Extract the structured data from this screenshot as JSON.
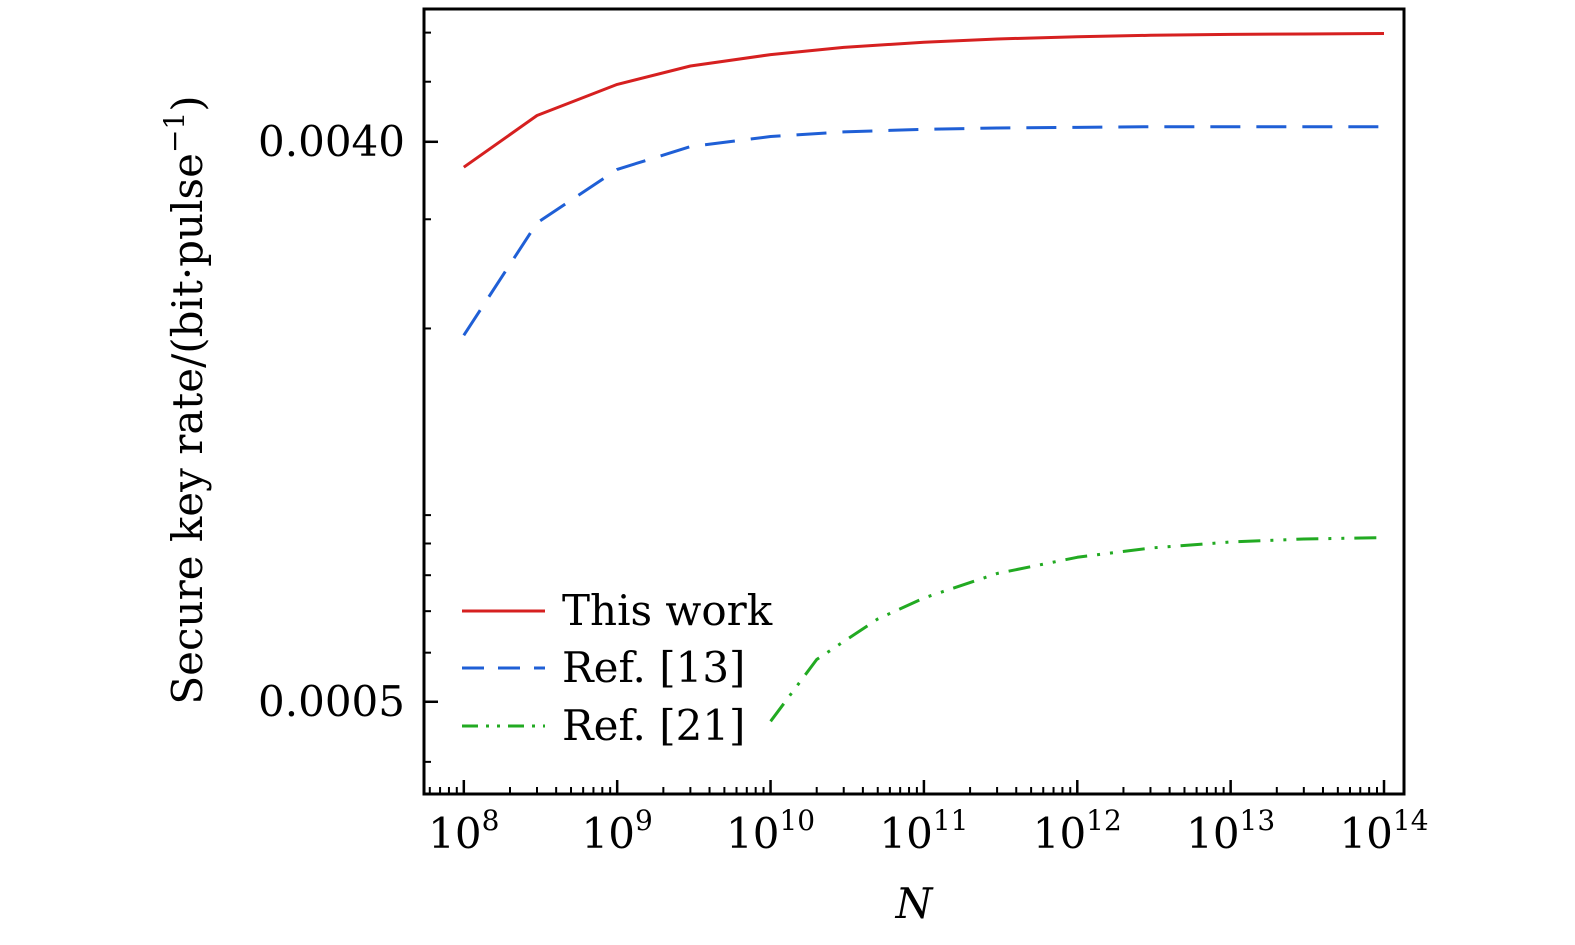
{
  "chart_data": {
    "type": "line",
    "xlabel": "N",
    "ylabel": "Secure key rate/(bit·pulse",
    "ylabel_sup": "−1",
    "ylabel_close": ")",
    "xscale": "log",
    "yscale": "log",
    "xlim": [
      55000000.0,
      135000000000000.0
    ],
    "ylim": [
      0.000355,
      0.00655
    ],
    "x_ticks": [
      {
        "base": "10",
        "exp": "8"
      },
      {
        "base": "10",
        "exp": "9"
      },
      {
        "base": "10",
        "exp": "10"
      },
      {
        "base": "10",
        "exp": "11"
      },
      {
        "base": "10",
        "exp": "12"
      },
      {
        "base": "10",
        "exp": "13"
      },
      {
        "base": "10",
        "exp": "14"
      }
    ],
    "y_ticks": [
      "0.0005",
      "0.0040"
    ],
    "grid": false,
    "legend_position": "bottom-left",
    "series": [
      {
        "name": "This work",
        "color": "#d62020",
        "dash": "solid",
        "x": [
          100000000.0,
          300000000.0,
          1000000000.0,
          3000000000.0,
          10000000000.0,
          30000000000.0,
          100000000000.0,
          300000000000.0,
          1000000000000.0,
          3000000000000.0,
          10000000000000.0,
          30000000000000.0,
          100000000000000.0
        ],
        "y": [
          0.00364,
          0.00441,
          0.00495,
          0.0053,
          0.00553,
          0.00568,
          0.00579,
          0.00586,
          0.00591,
          0.00594,
          0.00596,
          0.00597,
          0.00598
        ]
      },
      {
        "name": "Ref. [13]",
        "color": "#1f5fd6",
        "dash": "dashed",
        "x": [
          100000000.0,
          300000000.0,
          1000000000.0,
          3000000000.0,
          10000000000.0,
          30000000000.0,
          100000000000.0,
          300000000000.0,
          1000000000000.0,
          3000000000000.0,
          10000000000000.0,
          30000000000000.0,
          100000000000000.0
        ],
        "y": [
          0.00195,
          0.00296,
          0.00361,
          0.00393,
          0.00408,
          0.00415,
          0.00419,
          0.00421,
          0.00422,
          0.00423,
          0.00423,
          0.00423,
          0.00423
        ]
      },
      {
        "name": "Ref. [21]",
        "color": "#22aa22",
        "dash": "dash-dot-dot",
        "x": [
          10000000000.0,
          20000000000.0,
          50000000000.0,
          100000000000.0,
          300000000000.0,
          1000000000000.0,
          3000000000000.0,
          10000000000000.0,
          30000000000000.0,
          100000000000000.0
        ],
        "y": [
          0.000465,
          0.000585,
          0.00068,
          0.000735,
          0.000805,
          0.000855,
          0.000885,
          0.000905,
          0.000915,
          0.00092
        ]
      }
    ]
  }
}
